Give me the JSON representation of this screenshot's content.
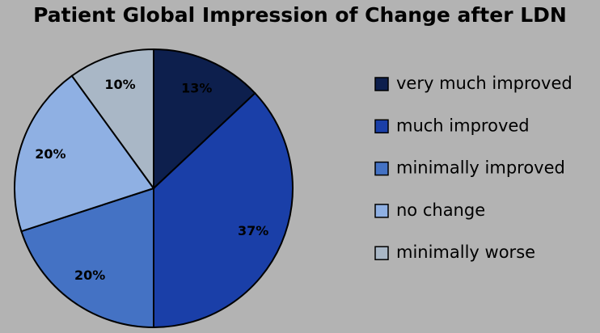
{
  "chart_data": {
    "type": "pie",
    "title": "Patient Global Impression of Change after LDN",
    "categories": [
      "very much improved",
      "much improved",
      "minimally improved",
      "no change",
      "minimally worse"
    ],
    "values": [
      13,
      37,
      20,
      20,
      10
    ],
    "value_labels": [
      "13%",
      "37%",
      "20%",
      "20%",
      "10%"
    ],
    "colors": [
      "#0d1f4d",
      "#1a3fa8",
      "#4472c4",
      "#8fb0e3",
      "#a9b7c6"
    ],
    "legend": "right"
  }
}
